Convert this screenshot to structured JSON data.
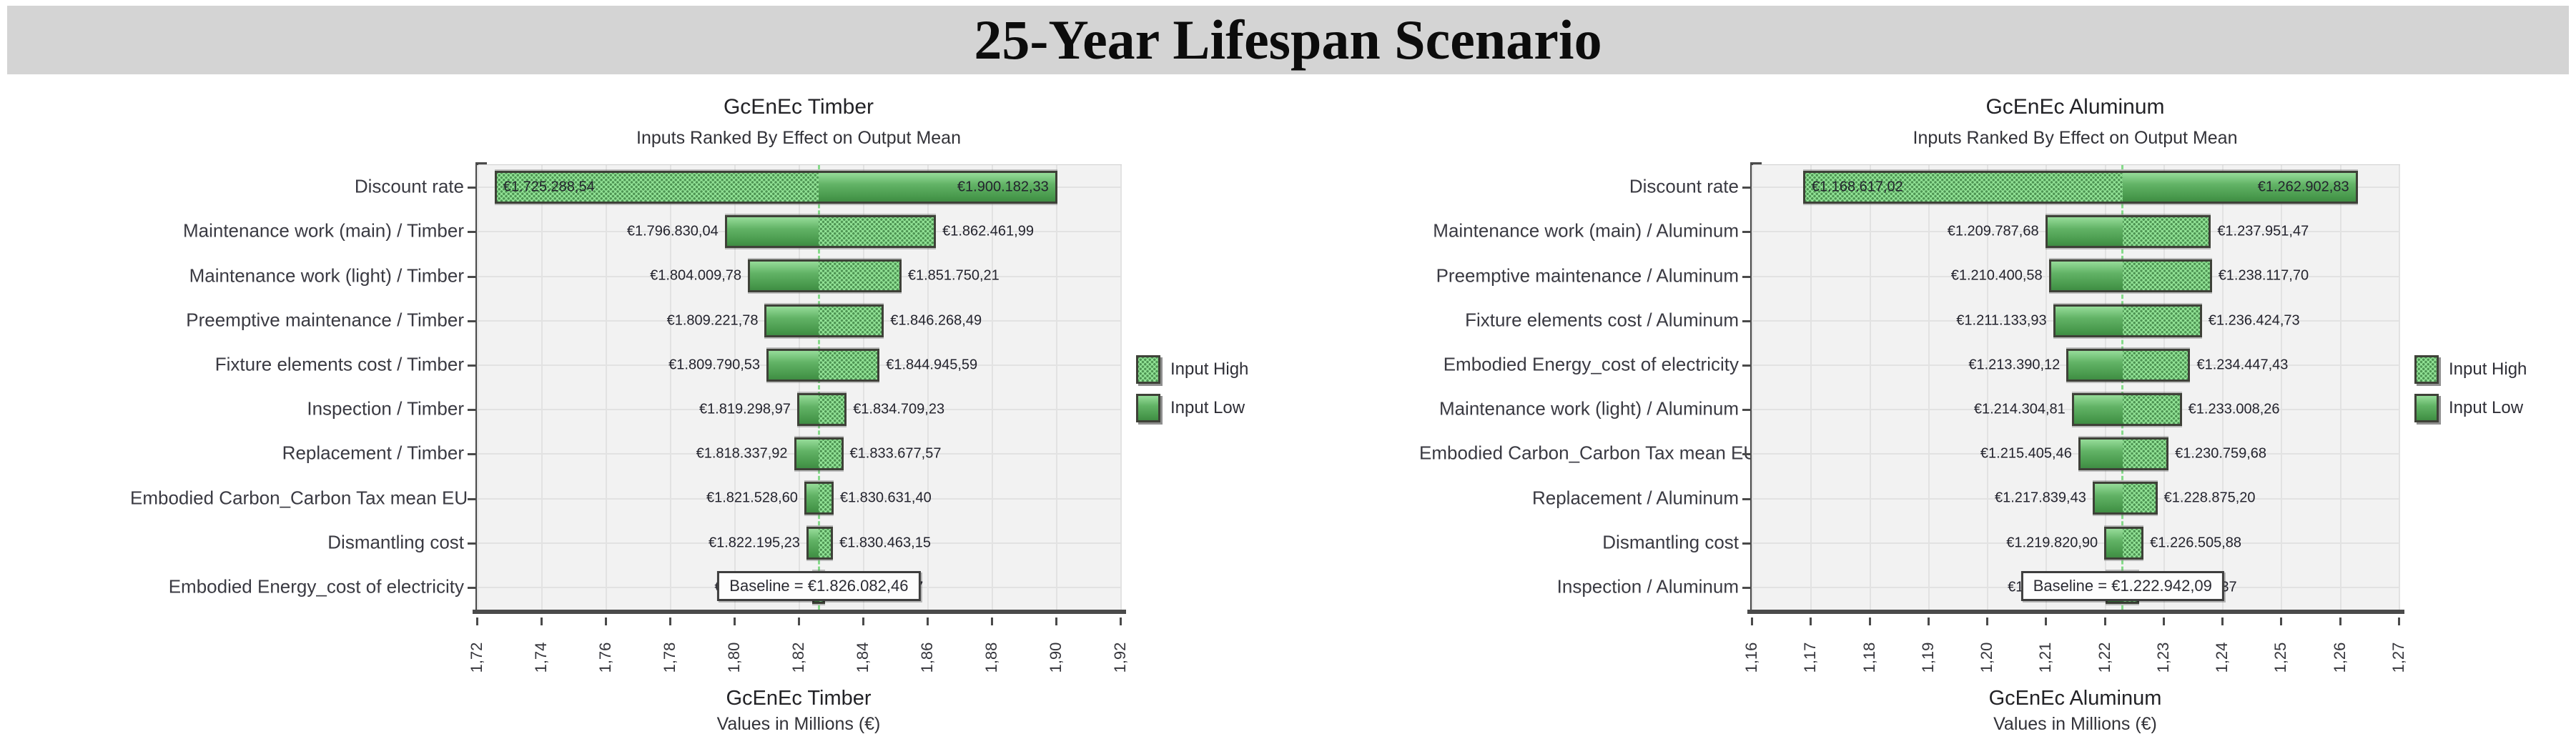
{
  "header": {
    "title": "25-Year Lifespan Scenario"
  },
  "chart_data": [
    {
      "type": "bar",
      "variant": "tornado",
      "title": "GcEnEc Timber",
      "subtitle": "Inputs Ranked By Effect on Output Mean",
      "xlabel_line1": "GcEnEc Timber",
      "xlabel_line2": "Values in Millions (€)",
      "xlim": [
        1.72,
        1.92
      ],
      "xticks": [
        "1,72",
        "1,74",
        "1,76",
        "1,78",
        "1,80",
        "1,82",
        "1,84",
        "1,86",
        "1,88",
        "1,90",
        "1,92"
      ],
      "grid": true,
      "legend_position": "right",
      "legend_high": "Input High",
      "legend_low": "Input Low",
      "baseline_value": 1.82608246,
      "baseline_label": "Baseline = €1.826.082,46",
      "rows": [
        {
          "label": "Discount rate",
          "low": 1.72528854,
          "high": 1.90018233,
          "low_label": "€1.725.288,54",
          "high_label": "€1.900.182,33",
          "hatch_side": "left",
          "labels_inside": true
        },
        {
          "label": "Maintenance work (main) / Timber",
          "low": 1.79683004,
          "high": 1.86246199,
          "low_label": "€1.796.830,04",
          "high_label": "€1.862.461,99",
          "hatch_side": "right",
          "labels_inside": false
        },
        {
          "label": "Maintenance work (light) / Timber",
          "low": 1.80400978,
          "high": 1.85175021,
          "low_label": "€1.804.009,78",
          "high_label": "€1.851.750,21",
          "hatch_side": "right",
          "labels_inside": false
        },
        {
          "label": "Preemptive maintenance / Timber",
          "low": 1.80922178,
          "high": 1.84626849,
          "low_label": "€1.809.221,78",
          "high_label": "€1.846.268,49",
          "hatch_side": "right",
          "labels_inside": false
        },
        {
          "label": "Fixture elements cost / Timber",
          "low": 1.80979053,
          "high": 1.84494559,
          "low_label": "€1.809.790,53",
          "high_label": "€1.844.945,59",
          "hatch_side": "right",
          "labels_inside": false
        },
        {
          "label": "Inspection / Timber",
          "low": 1.81929897,
          "high": 1.83470923,
          "low_label": "€1.819.298,97",
          "high_label": "€1.834.709,23",
          "hatch_side": "right",
          "labels_inside": false
        },
        {
          "label": "Replacement / Timber",
          "low": 1.81833792,
          "high": 1.83367757,
          "low_label": "€1.818.337,92",
          "high_label": "€1.833.677,57",
          "hatch_side": "right",
          "labels_inside": false
        },
        {
          "label": "Embodied Carbon_Carbon Tax mean EU",
          "low": 1.8215286,
          "high": 1.8306314,
          "low_label": "€1.821.528,60",
          "high_label": "€1.830.631,40",
          "hatch_side": "right",
          "labels_inside": false
        },
        {
          "label": "Dismantling cost",
          "low": 1.82219523,
          "high": 1.83046315,
          "low_label": "€1.822.195,23",
          "high_label": "€1.830.463,15",
          "hatch_side": "right",
          "labels_inside": false
        },
        {
          "label": "Embodied Energy_cost of  electricity",
          "low": 1.82407387,
          "high": 1.82808557,
          "low_label": "€1.824.073,87",
          "high_label": "€1.828.085,57",
          "hatch_side": "right",
          "labels_inside": false
        }
      ]
    },
    {
      "type": "bar",
      "variant": "tornado",
      "title": "GcEnEc Aluminum",
      "subtitle": "Inputs Ranked By Effect on Output Mean",
      "xlabel_line1": "GcEnEc Aluminum",
      "xlabel_line2": "Values in Millions (€)",
      "xlim": [
        1.16,
        1.27
      ],
      "xticks": [
        "1,16",
        "1,17",
        "1,18",
        "1,19",
        "1,20",
        "1,21",
        "1,22",
        "1,23",
        "1,24",
        "1,25",
        "1,26",
        "1,27"
      ],
      "grid": true,
      "legend_position": "right",
      "legend_high": "Input High",
      "legend_low": "Input Low",
      "baseline_value": 1.22294209,
      "baseline_label": "Baseline = €1.222.942,09",
      "rows": [
        {
          "label": "Discount rate",
          "low": 1.16861702,
          "high": 1.26290283,
          "low_label": "€1.168.617,02",
          "high_label": "€1.262.902,83",
          "hatch_side": "left",
          "labels_inside": true
        },
        {
          "label": "Maintenance work (main) / Aluminum",
          "low": 1.20978768,
          "high": 1.23795147,
          "low_label": "€1.209.787,68",
          "high_label": "€1.237.951,47",
          "hatch_side": "right",
          "labels_inside": false
        },
        {
          "label": "Preemptive maintenance / Aluminum",
          "low": 1.21040058,
          "high": 1.2381177,
          "low_label": "€1.210.400,58",
          "high_label": "€1.238.117,70",
          "hatch_side": "right",
          "labels_inside": false
        },
        {
          "label": "Fixture elements cost / Aluminum",
          "low": 1.21113393,
          "high": 1.23642473,
          "low_label": "€1.211.133,93",
          "high_label": "€1.236.424,73",
          "hatch_side": "right",
          "labels_inside": false
        },
        {
          "label": "Embodied Energy_cost of  electricity",
          "low": 1.21339012,
          "high": 1.23444743,
          "low_label": "€1.213.390,12",
          "high_label": "€1.234.447,43",
          "hatch_side": "right",
          "labels_inside": false
        },
        {
          "label": "Maintenance work (light) / Aluminum",
          "low": 1.21430481,
          "high": 1.23300826,
          "low_label": "€1.214.304,81",
          "high_label": "€1.233.008,26",
          "hatch_side": "right",
          "labels_inside": false
        },
        {
          "label": "Embodied Carbon_Carbon Tax mean EU",
          "low": 1.21540546,
          "high": 1.23075968,
          "low_label": "€1.215.405,46",
          "high_label": "€1.230.759,68",
          "hatch_side": "right",
          "labels_inside": false
        },
        {
          "label": "Replacement / Aluminum",
          "low": 1.21783943,
          "high": 1.2288752,
          "low_label": "€1.217.839,43",
          "high_label": "€1.228.875,20",
          "hatch_side": "right",
          "labels_inside": false
        },
        {
          "label": "Dismantling cost",
          "low": 1.2198209,
          "high": 1.22650588,
          "low_label": "€1.219.820,90",
          "high_label": "€1.226.505,88",
          "hatch_side": "right",
          "labels_inside": false
        },
        {
          "label": "Inspection / Aluminum",
          "low": 1.22004977,
          "high": 1.22572037,
          "low_label": "€1.220.049,77",
          "high_label": "€1.225.720,37",
          "hatch_side": "right",
          "labels_inside": false
        }
      ]
    }
  ]
}
